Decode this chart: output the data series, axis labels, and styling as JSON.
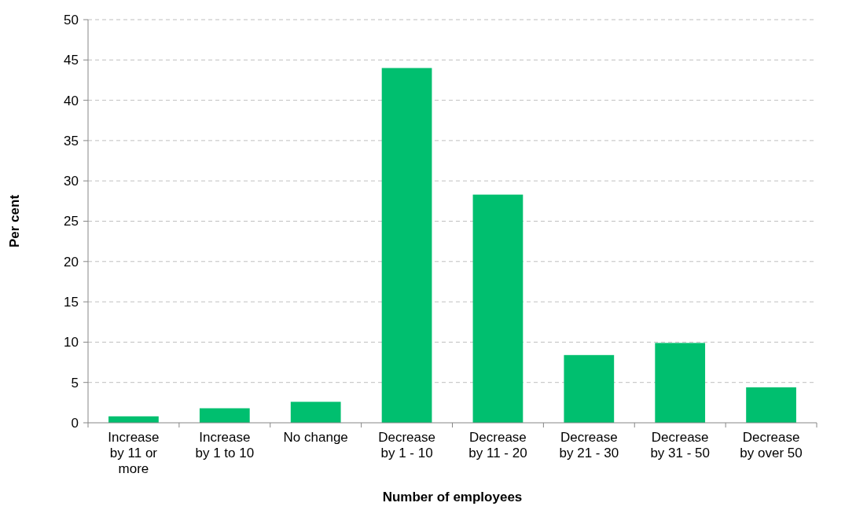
{
  "chart_data": {
    "type": "bar",
    "xlabel": "Number of employees",
    "ylabel": "Per cent",
    "categories": [
      "Increase by 11 or more",
      "Increase by 1 to 10",
      "No change",
      "Decrease by 1 - 10",
      "Decrease by 11 - 20",
      "Decrease by 21 - 30",
      "Decrease by 31 - 50",
      "Decrease by over 50"
    ],
    "values": [
      0.8,
      1.8,
      2.6,
      44.0,
      28.3,
      8.4,
      9.9,
      4.4
    ],
    "color": "#00bf6f",
    "ylim": [
      0,
      50
    ],
    "yticks": [
      0,
      5,
      10,
      15,
      20,
      25,
      30,
      35,
      40,
      45,
      50
    ],
    "grid": "y"
  }
}
